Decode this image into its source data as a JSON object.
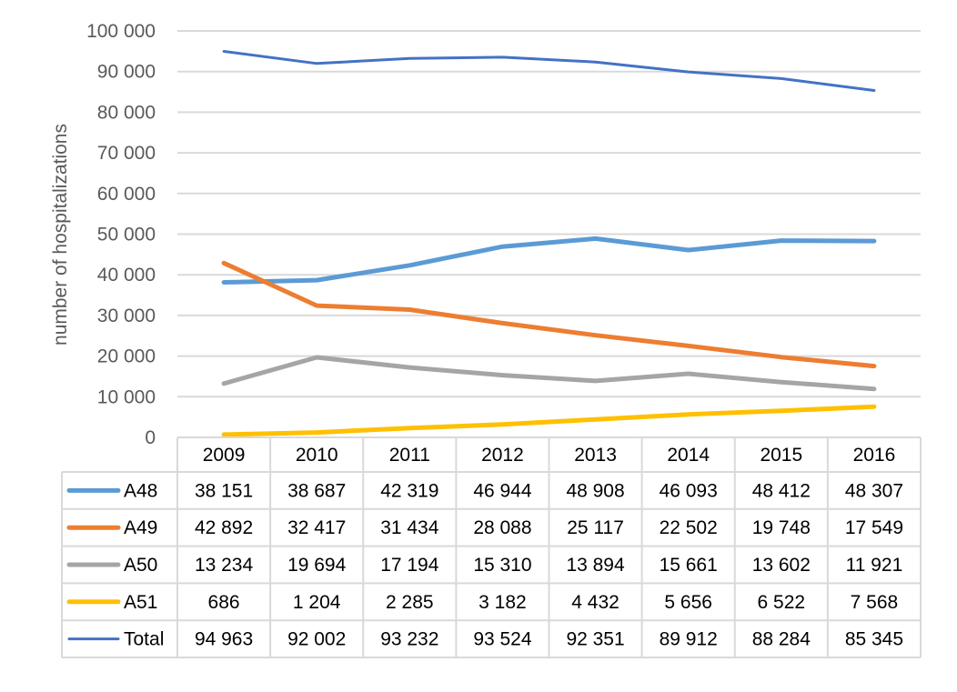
{
  "chart_data": {
    "type": "line",
    "ylabel": "number of hospitalizations",
    "ylim": [
      0,
      100000
    ],
    "yticks": [
      0,
      10000,
      20000,
      30000,
      40000,
      50000,
      60000,
      70000,
      80000,
      90000,
      100000
    ],
    "ytick_labels": [
      "0",
      "10 000",
      "20 000",
      "30 000",
      "40 000",
      "50 000",
      "60 000",
      "70 000",
      "80 000",
      "90 000",
      "100 000"
    ],
    "grid": true,
    "legend": "data-table-left",
    "categories": [
      "2009",
      "2010",
      "2011",
      "2012",
      "2013",
      "2014",
      "2015",
      "2016"
    ],
    "series": [
      {
        "name": "A48",
        "color": "#5B9BD5",
        "values": [
          38151,
          38687,
          42319,
          46944,
          48908,
          46093,
          48412,
          48307
        ],
        "labels": [
          "38 151",
          "38 687",
          "42 319",
          "46 944",
          "48 908",
          "46 093",
          "48 412",
          "48 307"
        ]
      },
      {
        "name": "A49",
        "color": "#ED7D31",
        "values": [
          42892,
          32417,
          31434,
          28088,
          25117,
          22502,
          19748,
          17549
        ],
        "labels": [
          "42 892",
          "32 417",
          "31 434",
          "28 088",
          "25 117",
          "22 502",
          "19 748",
          "17 549"
        ]
      },
      {
        "name": "A50",
        "color": "#A5A5A5",
        "values": [
          13234,
          19694,
          17194,
          15310,
          13894,
          15661,
          13602,
          11921
        ],
        "labels": [
          "13 234",
          "19 694",
          "17 194",
          "15 310",
          "13 894",
          "15 661",
          "13 602",
          "11 921"
        ]
      },
      {
        "name": "A51",
        "color": "#FFC000",
        "values": [
          686,
          1204,
          2285,
          3182,
          4432,
          5656,
          6522,
          7568
        ],
        "labels": [
          "686",
          "1 204",
          "2 285",
          "3 182",
          "4 432",
          "5 656",
          "6 522",
          "7 568"
        ]
      },
      {
        "name": "Total",
        "color": "#4472C4",
        "values": [
          94963,
          92002,
          93232,
          93524,
          92351,
          89912,
          88284,
          85345
        ],
        "labels": [
          "94 963",
          "92 002",
          "93 232",
          "93 524",
          "92 351",
          "89 912",
          "88 284",
          "85 345"
        ]
      }
    ]
  }
}
